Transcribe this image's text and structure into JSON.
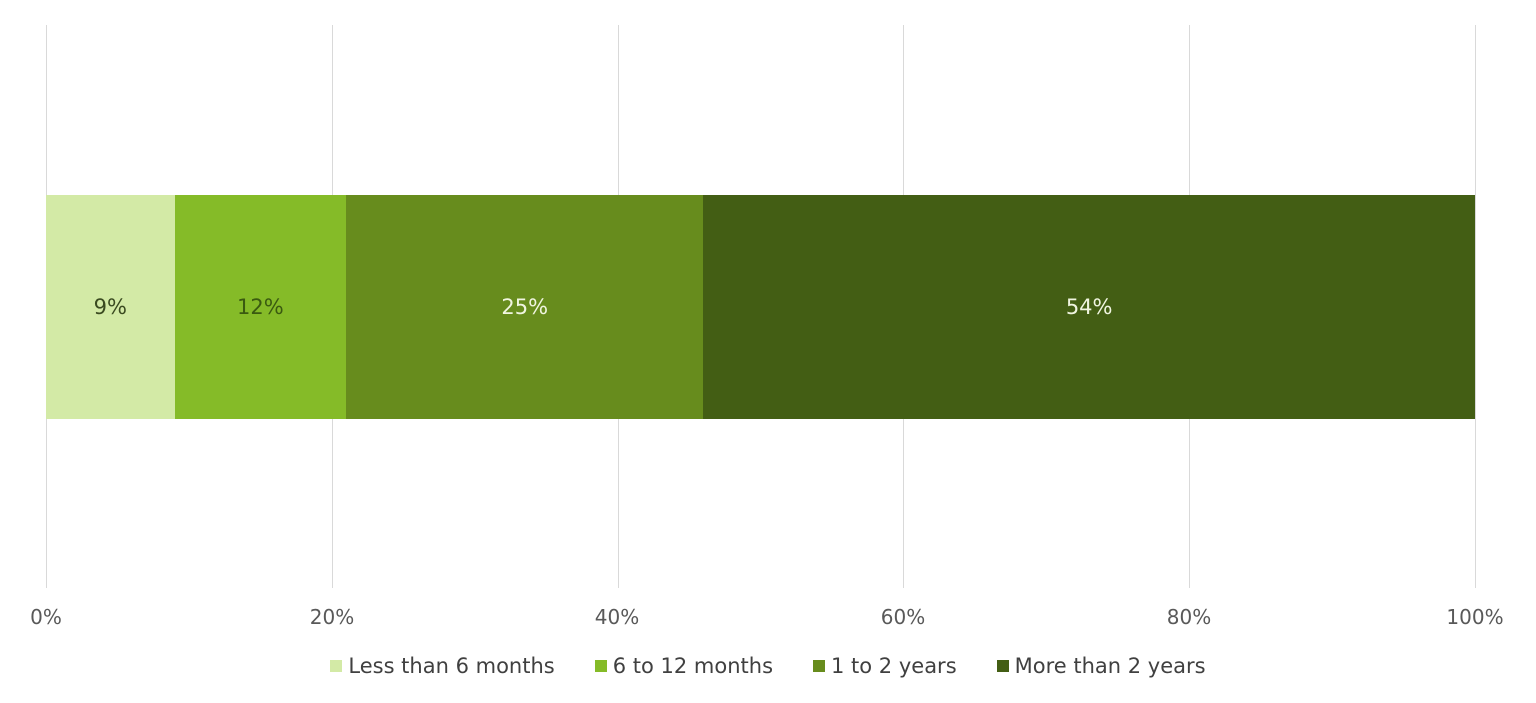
{
  "chart_data": {
    "type": "bar",
    "orientation": "horizontal",
    "stacked": "100%",
    "title": "",
    "xlabel": "",
    "ylabel": "",
    "xlim": [
      0,
      100
    ],
    "x_ticks": [
      "0%",
      "20%",
      "40%",
      "60%",
      "80%",
      "100%"
    ],
    "grid": true,
    "legend_position": "bottom",
    "categories": [
      ""
    ],
    "series": [
      {
        "name": "Less than 6 months",
        "values": [
          9
        ],
        "label": "9%",
        "color": "#d3eaa6",
        "text_color": "#3a4a20"
      },
      {
        "name": "6 to 12 months",
        "values": [
          12
        ],
        "label": "12%",
        "color": "#85bb28",
        "text_color": "#3a5a10"
      },
      {
        "name": "1 to 2 years",
        "values": [
          25
        ],
        "label": "25%",
        "color": "#678c1d",
        "text_color": "#f0f5e0"
      },
      {
        "name": "More than 2 years",
        "values": [
          54
        ],
        "label": "54%",
        "color": "#435e14",
        "text_color": "#f0f5e0"
      }
    ]
  }
}
